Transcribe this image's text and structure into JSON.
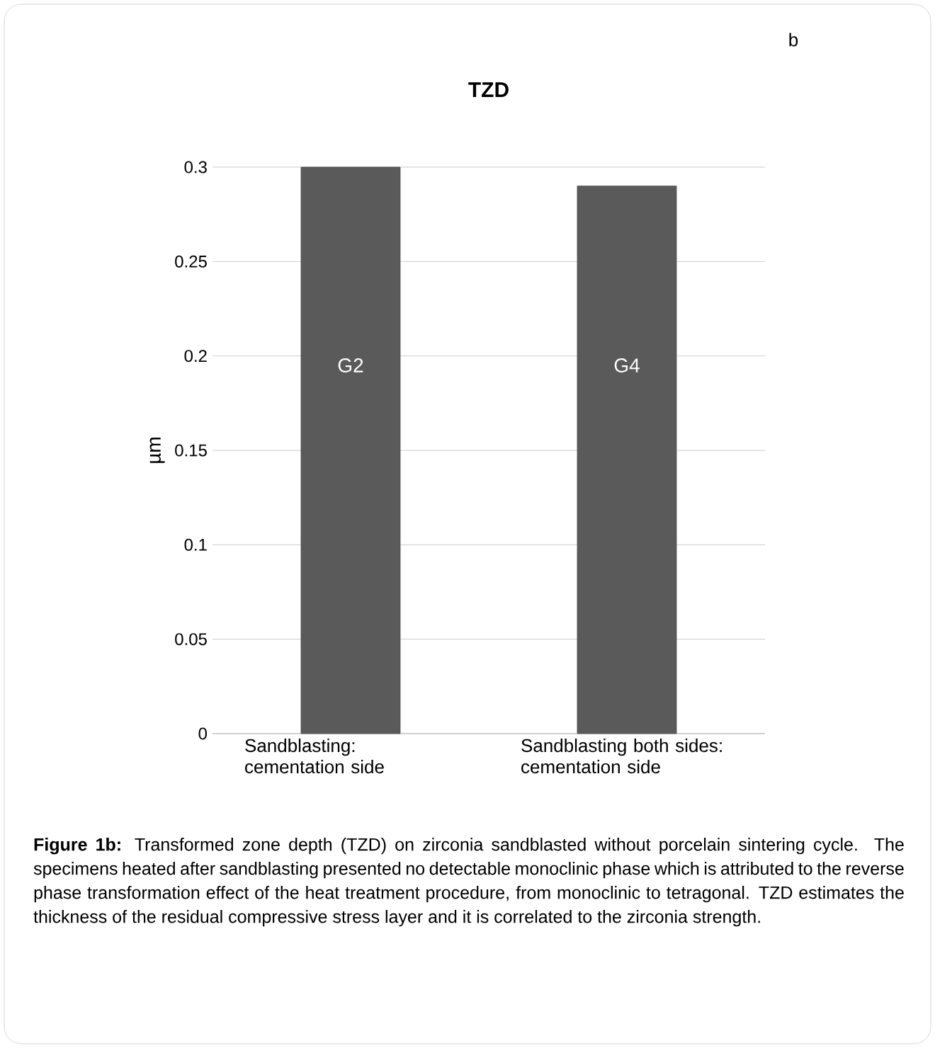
{
  "chart_data": {
    "type": "bar",
    "title": "TZD",
    "ylabel": "µm",
    "categories": [
      "Sandblasting: cementation side",
      "Sandblasting both sides: cementation side"
    ],
    "values": [
      0.3,
      0.29
    ],
    "color": "#5a5a5a",
    "ylim": [
      0,
      0.3
    ],
    "yticks": [
      0,
      0.05,
      0.1,
      0.15,
      0.2,
      0.25,
      0.3
    ],
    "grid": "y",
    "annotations": [
      "b",
      "G2",
      "G4",
      "**Figure 1b:** Transformed zone depth (TZD) on zirconia sandblasted without porcelain sintering cycle. The specimens heated after sandblasting presented no detectable monoclinic phase which is attributed to the reverse phase transformation effect of the heat treatment procedure, from monoclinic to tetragonal. TZD estimates the thickness of the residual compressive stress layer and it is correlated to the zirconia strength."
    ]
  }
}
